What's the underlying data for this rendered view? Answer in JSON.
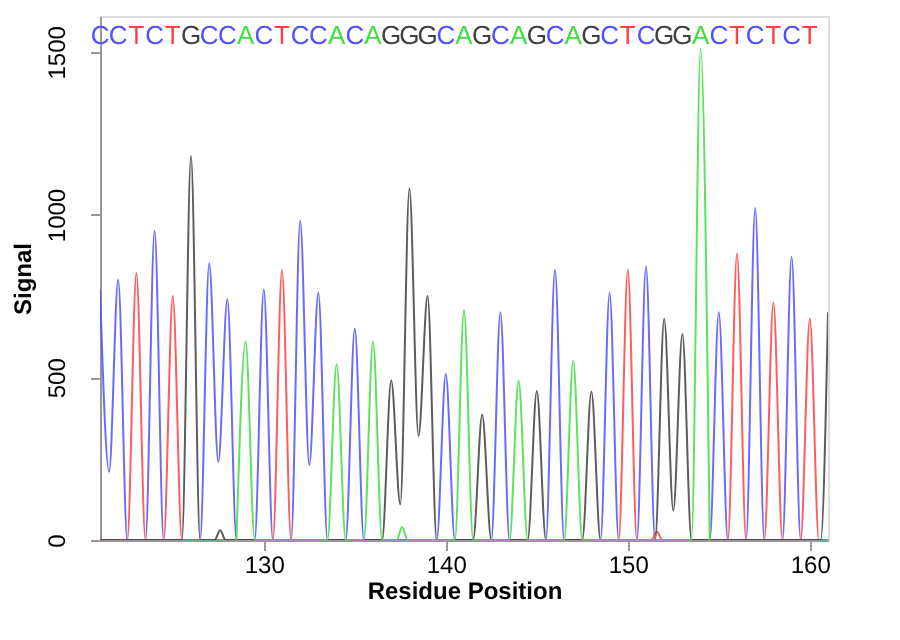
{
  "chart_data": {
    "type": "line",
    "xlabel": "Residue Position",
    "ylabel": "Signal",
    "xlim": [
      121,
      161
    ],
    "xticks": [
      130,
      140,
      150,
      160
    ],
    "ylim": [
      0,
      1610
    ],
    "yticks": [
      0,
      500,
      1000,
      1500
    ],
    "grid": false,
    "marker": "none",
    "line_style": "solid",
    "series": [
      {
        "color": "#5050ff",
        "x": [
          121,
          121.5,
          122,
          122.5,
          123.5,
          124,
          124.5,
          126.5,
          127,
          127.5,
          128,
          128.5,
          129.5,
          130,
          130.5,
          131.5,
          132,
          132.5,
          133,
          133.5,
          134.5,
          135,
          135.5,
          139.5,
          140,
          140.5,
          142.5,
          143,
          143.5,
          145.5,
          146,
          146.5,
          148.5,
          149,
          149.5,
          150.5,
          151,
          151.5,
          154.5,
          155,
          155.5,
          156.5,
          157,
          157.5,
          158.5,
          159,
          159.5,
          161
        ],
        "values": [
          770,
          210,
          800,
          0,
          0,
          950,
          0,
          0,
          850,
          240,
          740,
          0,
          0,
          770,
          0,
          0,
          980,
          230,
          760,
          0,
          0,
          650,
          0,
          0,
          510,
          0,
          0,
          700,
          0,
          0,
          830,
          0,
          0,
          760,
          0,
          0,
          840,
          0,
          0,
          700,
          0,
          0,
          1020,
          0,
          0,
          870,
          0,
          0
        ]
      },
      {
        "color": "#ff4040",
        "x": [
          121,
          122.5,
          123,
          123.5,
          124.5,
          125,
          125.5,
          130.5,
          131,
          131.5,
          149.5,
          150,
          150.5,
          151.3,
          151.6,
          151.9,
          155.5,
          156,
          156.5,
          157.5,
          158,
          158.5,
          159.5,
          160,
          160.5,
          161
        ],
        "values": [
          0,
          0,
          820,
          0,
          0,
          750,
          0,
          0,
          830,
          0,
          0,
          830,
          0,
          0,
          25,
          0,
          0,
          880,
          0,
          0,
          730,
          0,
          0,
          680,
          0,
          0
        ]
      },
      {
        "color": "#404040",
        "x": [
          121,
          125.5,
          126,
          126.5,
          127.3,
          127.6,
          127.9,
          136.5,
          137,
          137.5,
          138,
          138.5,
          139,
          139.5,
          141.5,
          142,
          142.5,
          144.5,
          145,
          145.5,
          147.5,
          148,
          148.5,
          151.5,
          152,
          152.5,
          153,
          153.5,
          160.6,
          161
        ],
        "values": [
          0,
          0,
          1180,
          0,
          0,
          30,
          0,
          0,
          490,
          110,
          1080,
          320,
          750,
          0,
          0,
          385,
          0,
          0,
          458,
          0,
          0,
          456,
          0,
          0,
          680,
          90,
          633,
          0,
          0,
          700
        ]
      },
      {
        "color": "#40dd40",
        "x": [
          128.5,
          129,
          129.5,
          133.5,
          134,
          134.5,
          135.5,
          136,
          136.5,
          137.3,
          137.6,
          137.9,
          140.5,
          141,
          141.5,
          143.5,
          144,
          144.5,
          146.5,
          147,
          147.5,
          153.5,
          154,
          154.5
        ],
        "values": [
          0,
          610,
          0,
          0,
          540,
          0,
          0,
          610,
          0,
          0,
          40,
          0,
          0,
          706,
          0,
          0,
          489,
          0,
          0,
          550,
          0,
          0,
          1510,
          0
        ]
      }
    ],
    "annotations": [
      "C",
      "C",
      "T",
      "C",
      "T",
      "G",
      "C",
      "C",
      "A",
      "C",
      "T",
      "C",
      "C",
      "A",
      "C",
      "A",
      "G",
      "G",
      "G",
      "C",
      "A",
      "G",
      "C",
      "A",
      "G",
      "C",
      "A",
      "G",
      "C",
      "T",
      "C",
      "G",
      "G",
      "A",
      "C",
      "T",
      "C",
      "T",
      "C",
      "T"
    ]
  }
}
